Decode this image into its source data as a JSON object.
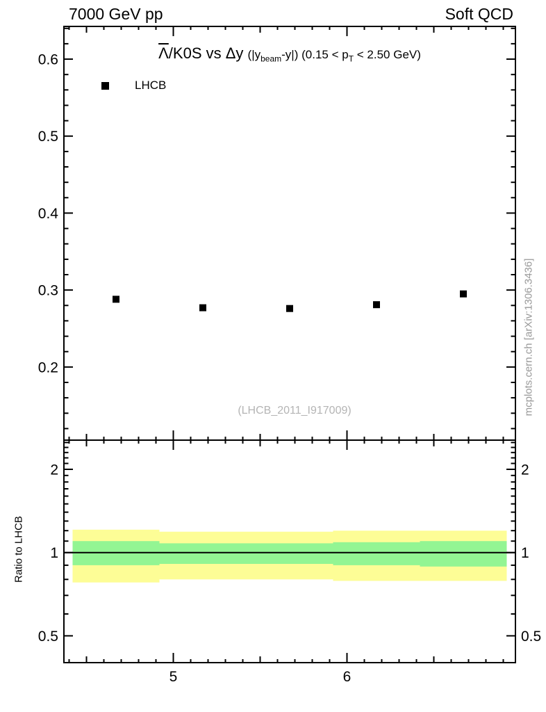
{
  "header": {
    "left": "7000 GeV pp",
    "right": "Soft QCD"
  },
  "title": {
    "lambda": "Λ",
    "main_rest": "/K0S vs Δy ",
    "paren_open": "(|y",
    "sub_beam": "beam",
    "paren_mid": "-y|) (0.15 < p",
    "sub_t": "T",
    "paren_end": " < 2.50 GeV)"
  },
  "legend": {
    "label": "LHCB",
    "marker": "filled-square",
    "marker_color": "#000000"
  },
  "watermark": "(LHCB_2011_I917009)",
  "side_text": "mcplots.cern.ch [arXiv:1306.3436]",
  "ratio_axis_title": "Ratio to LHCB",
  "colors": {
    "axis": "#000000",
    "marker": "#000000",
    "band_outer": "#fdfd96",
    "band_inner": "#93f593",
    "watermark_text": "#b4b4b4",
    "side_text": "#999999"
  },
  "chart_data": {
    "type": "scatter",
    "title": "Λ̄/K0S vs Δy (|y_beam-y|) (0.15 < pT < 2.50 GeV)",
    "xlabel": "",
    "ylabel": "",
    "xlim": [
      4.37,
      6.97
    ],
    "x_major_ticks": [
      5,
      6
    ],
    "x_major_tick_labels": [
      "5",
      "6"
    ],
    "x_mid_tick_step": 0.5,
    "x_minor_tick_step": 0.1,
    "main_panel": {
      "yscale": "linear",
      "ylim": [
        0.105,
        0.6425
      ],
      "y_major_ticks": [
        0.2,
        0.3,
        0.4,
        0.5,
        0.6
      ],
      "y_major_tick_labels": [
        "0.2",
        "0.3",
        "0.4",
        "0.5",
        "0.6"
      ],
      "y_minor_tick_step": 0.02
    },
    "ratio_panel": {
      "yscale": "log",
      "ylim": [
        0.4,
        2.55
      ],
      "ylabel": "Ratio to LHCB",
      "y_major_ticks": [
        0.5,
        1,
        2
      ],
      "y_major_tick_labels": [
        "0.5",
        "1",
        "2"
      ],
      "y_minor_ticks": [
        0.6,
        0.7,
        0.8,
        0.9,
        1.1,
        1.2,
        1.3,
        1.4,
        1.5,
        1.6,
        1.7,
        1.8,
        1.9,
        2.1,
        2.2,
        2.3,
        2.4,
        2.5
      ],
      "reference_line": 1.0
    },
    "series": [
      {
        "name": "LHCB",
        "marker": "filled-square",
        "color": "#000000",
        "x": [
          4.67,
          5.17,
          5.67,
          6.17,
          6.67
        ],
        "y": [
          0.288,
          0.277,
          0.276,
          0.281,
          0.295
        ]
      }
    ],
    "ratio_bands": {
      "bin_edges": [
        4.42,
        4.92,
        5.42,
        5.92,
        6.42,
        6.92
      ],
      "outer": {
        "name": "total-uncertainty",
        "color": "#fdfd96",
        "low": [
          0.78,
          0.8,
          0.8,
          0.79,
          0.79
        ],
        "high": [
          1.21,
          1.19,
          1.19,
          1.2,
          1.2
        ]
      },
      "inner": {
        "name": "stat-uncertainty",
        "color": "#93f593",
        "low": [
          0.9,
          0.91,
          0.91,
          0.9,
          0.89
        ],
        "high": [
          1.1,
          1.08,
          1.08,
          1.09,
          1.1
        ]
      }
    }
  }
}
